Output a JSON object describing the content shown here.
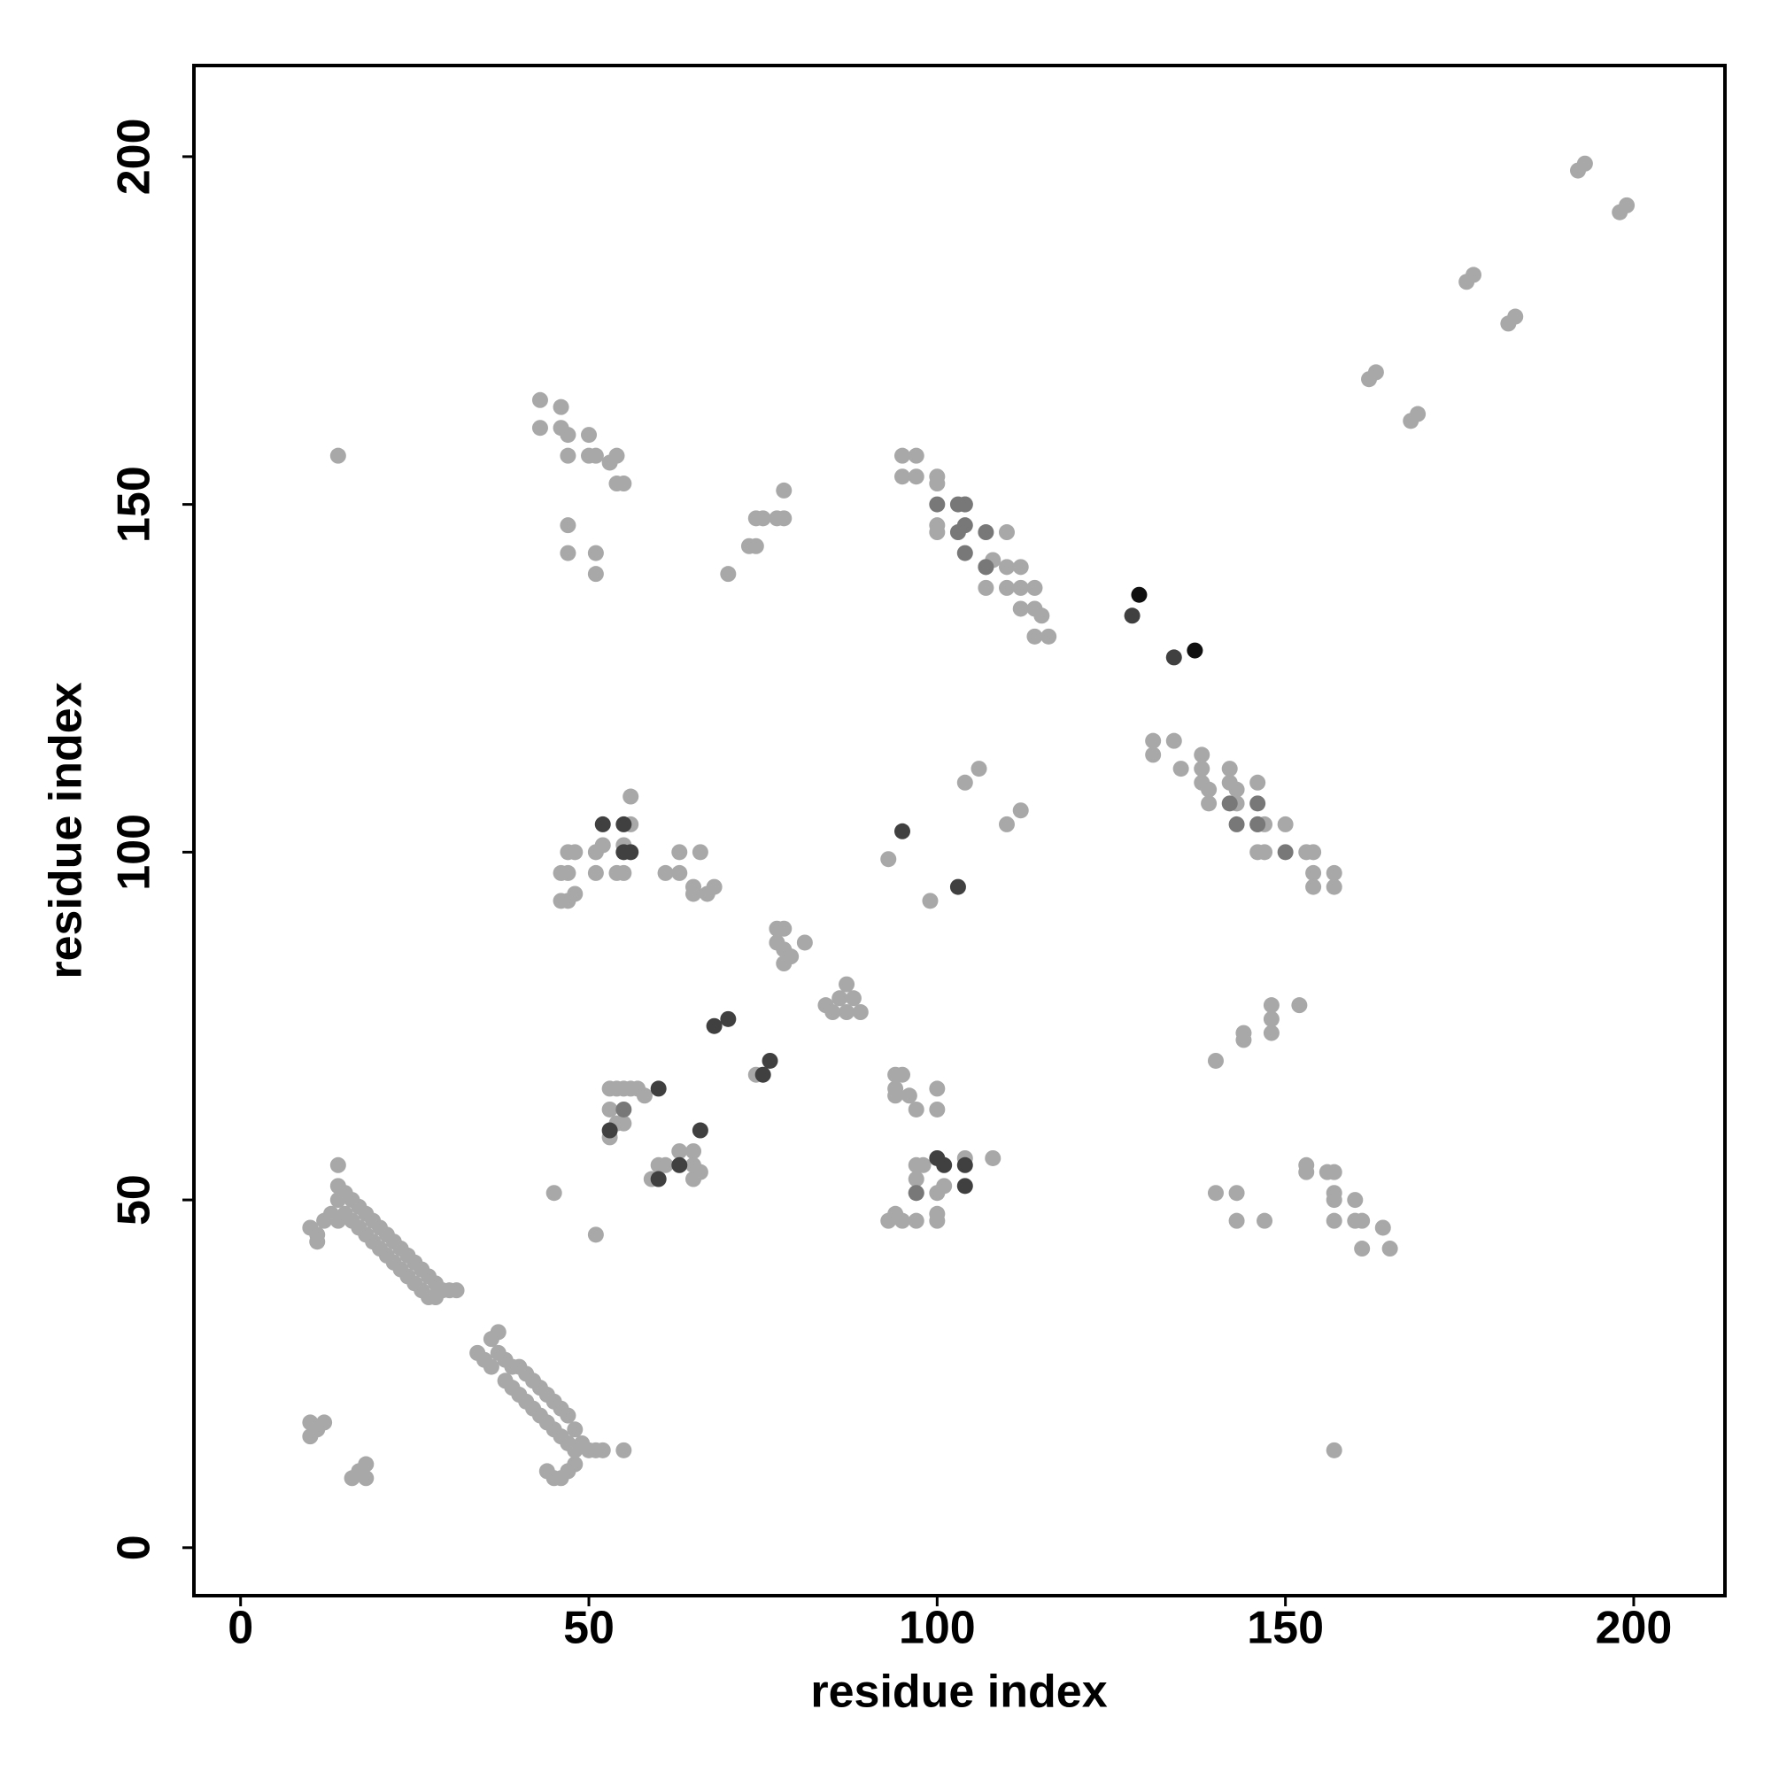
{
  "chart_data": {
    "type": "scatter",
    "xlabel": "residue index",
    "ylabel": "residue index",
    "xlim": [
      -6.7,
      213.1
    ],
    "ylim": [
      -6.9,
      213.1
    ],
    "xticks": [
      0,
      50,
      100,
      150,
      200
    ],
    "yticks": [
      0,
      50,
      100,
      150,
      200
    ],
    "series": [
      {
        "color": "#a8a8a8",
        "x": [
          10,
          11,
          12,
          13,
          14,
          14,
          14,
          15,
          15,
          16,
          16,
          17,
          17,
          18,
          18,
          19,
          19,
          20,
          20,
          21,
          21,
          22,
          22,
          23,
          23,
          24,
          24,
          25,
          25,
          26,
          26,
          27,
          27,
          28,
          28,
          29,
          30,
          31,
          14,
          11,
          34,
          35,
          36,
          36,
          37,
          37,
          38,
          38,
          39,
          39,
          40,
          40,
          41,
          41,
          42,
          42,
          43,
          43,
          44,
          44,
          45,
          45,
          46,
          46,
          47,
          47,
          48,
          48,
          49,
          50,
          51,
          52,
          55,
          44,
          45,
          46,
          47,
          48,
          10,
          10,
          12,
          11,
          16,
          17,
          18,
          18,
          43,
          46,
          43,
          46,
          47,
          47,
          50,
          50,
          51,
          53,
          54,
          54,
          55,
          47,
          47,
          51,
          51,
          14,
          70,
          73,
          74,
          74,
          75,
          77,
          78,
          78,
          95,
          97,
          95,
          97,
          100,
          100,
          100,
          100,
          104,
          107,
          107,
          108,
          110,
          110,
          110,
          112,
          112,
          112,
          114,
          114,
          115,
          114,
          116,
          131,
          131,
          134,
          135,
          138,
          138,
          138,
          139,
          139,
          142,
          142,
          143,
          143,
          146,
          146,
          146,
          147,
          147,
          150,
          153,
          154,
          154,
          154,
          157,
          157,
          93,
          99,
          104,
          106,
          110,
          112,
          77,
          78,
          77,
          78,
          79,
          78,
          81,
          84,
          85,
          87,
          87,
          89,
          88,
          86,
          74,
          56,
          47,
          48,
          46,
          47,
          48,
          46,
          47,
          51,
          52,
          51,
          54,
          55,
          55,
          56,
          61,
          63,
          63,
          65,
          66,
          67,
          68,
          65,
          53,
          54,
          55,
          56,
          57,
          58,
          53,
          54,
          53,
          55,
          59,
          60,
          61,
          63,
          65,
          65,
          65,
          66,
          45,
          51,
          94,
          95,
          94,
          96,
          97,
          100,
          100,
          94,
          97,
          98,
          97,
          97,
          93,
          94,
          95,
          97,
          100,
          100,
          101,
          104,
          108,
          100,
          140,
          144,
          144,
          148,
          148,
          148,
          152,
          140,
          143,
          143,
          147,
          153,
          153,
          156,
          157,
          157,
          157,
          157,
          160,
          160,
          161,
          161,
          164,
          165,
          157,
          162,
          163,
          168,
          169,
          176,
          177,
          182,
          183,
          192,
          193,
          198,
          199
        ],
        "values": [
          46,
          45,
          47,
          48,
          47,
          50,
          52,
          51,
          48,
          50,
          47,
          49,
          46,
          48,
          45,
          47,
          44,
          46,
          43,
          45,
          42,
          44,
          41,
          43,
          40,
          42,
          39,
          41,
          38,
          40,
          37,
          39,
          36,
          38,
          36,
          37,
          37,
          37,
          55,
          44,
          28,
          27,
          30,
          26,
          31,
          28,
          27,
          24,
          26,
          23,
          26,
          22,
          25,
          21,
          24,
          20,
          23,
          19,
          22,
          18,
          21,
          17,
          20,
          16,
          19,
          15,
          17,
          14,
          15,
          14,
          14,
          14,
          14,
          11,
          10,
          10,
          11,
          12,
          18,
          16,
          18,
          17,
          10,
          11,
          12,
          10,
          165,
          164,
          161,
          161,
          160,
          157,
          160,
          157,
          157,
          156,
          157,
          153,
          153,
          147,
          143,
          143,
          140,
          157,
          140,
          144,
          144,
          148,
          148,
          148,
          148,
          152,
          157,
          157,
          154,
          154,
          154,
          153,
          147,
          146,
          150,
          141,
          138,
          142,
          146,
          141,
          138,
          141,
          138,
          135,
          138,
          135,
          134,
          131,
          131,
          116,
          114,
          116,
          112,
          114,
          112,
          110,
          109,
          107,
          112,
          110,
          109,
          107,
          110,
          104,
          100,
          104,
          100,
          104,
          100,
          100,
          97,
          95,
          97,
          95,
          99,
          93,
          110,
          112,
          104,
          106,
          89,
          89,
          87,
          86,
          85,
          84,
          87,
          78,
          77,
          77,
          81,
          77,
          79,
          79,
          68,
          108,
          100,
          100,
          97,
          97,
          94,
          93,
          93,
          100,
          101,
          97,
          97,
          97,
          101,
          104,
          97,
          100,
          97,
          95,
          100,
          94,
          95,
          94,
          66,
          66,
          66,
          66,
          66,
          65,
          63,
          61,
          59,
          61,
          53,
          55,
          55,
          57,
          57,
          55,
          53,
          54,
          51,
          45,
          68,
          68,
          66,
          65,
          63,
          66,
          63,
          65,
          55,
          55,
          53,
          51,
          47,
          48,
          47,
          47,
          48,
          47,
          52,
          56,
          56,
          51,
          70,
          74,
          73,
          78,
          76,
          74,
          78,
          51,
          51,
          47,
          47,
          55,
          54,
          54,
          54,
          51,
          50,
          47,
          50,
          47,
          47,
          43,
          46,
          43,
          14,
          168,
          169,
          162,
          163,
          182,
          183,
          176,
          177,
          198,
          199,
          192,
          193
        ]
      },
      {
        "color": "#787878",
        "x": [
          100,
          103,
          104,
          104,
          103,
          104,
          107,
          107,
          142,
          143,
          146,
          146,
          150,
          55,
          97
        ],
        "values": [
          150,
          150,
          150,
          147,
          146,
          143,
          146,
          141,
          107,
          104,
          107,
          104,
          100,
          63,
          51
        ]
      },
      {
        "color": "#404040",
        "x": [
          128,
          134,
          95,
          103,
          68,
          70,
          75,
          76,
          52,
          55,
          55,
          56,
          53,
          60,
          60,
          63,
          66,
          100,
          101,
          104,
          104
        ],
        "values": [
          134,
          128,
          103,
          95,
          75,
          76,
          68,
          70,
          104,
          104,
          100,
          100,
          60,
          66,
          53,
          55,
          60,
          56,
          55,
          55,
          52
        ]
      },
      {
        "color": "#101010",
        "x": [
          129,
          137
        ],
        "values": [
          137,
          129
        ]
      }
    ]
  }
}
